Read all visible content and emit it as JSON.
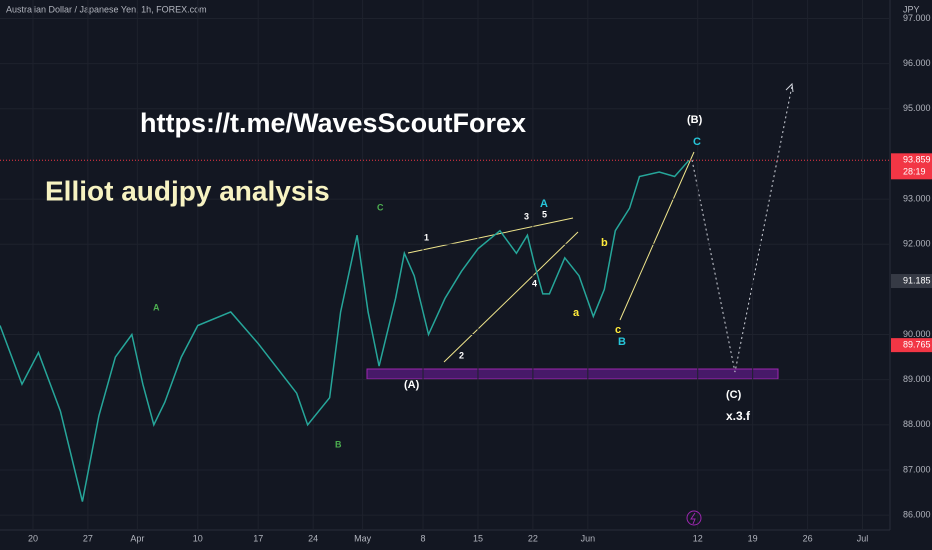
{
  "chart_data": {
    "type": "line",
    "title": "Australian Dollar / Japanese Yen, 1h, FOREX.com",
    "y_axis_label": "JPY",
    "x": [
      0,
      2,
      3.5,
      5.5,
      7.5,
      9,
      10.5,
      12,
      13,
      14,
      15,
      16.5,
      18,
      21,
      23.5,
      27,
      28,
      30,
      31,
      32.5,
      33.5,
      34.5,
      36,
      36.8,
      37.7,
      39,
      40.5,
      42,
      43.5,
      45.5,
      47,
      48,
      48.6,
      49.4,
      50,
      51.4,
      52.7,
      54,
      55,
      56,
      57.3,
      58.2,
      60,
      61.4,
      62.7
    ],
    "series": [
      {
        "name": "AUDJPY",
        "color": "#26a69a",
        "values": [
          90.2,
          88.9,
          89.6,
          88.3,
          86.3,
          88.2,
          89.5,
          90.0,
          88.9,
          88.0,
          88.5,
          89.5,
          90.2,
          90.5,
          89.8,
          88.7,
          88.0,
          88.6,
          90.5,
          92.2,
          90.5,
          89.3,
          90.8,
          91.8,
          91.3,
          90.0,
          90.8,
          91.4,
          91.9,
          92.3,
          91.8,
          92.2,
          91.6,
          90.9,
          90.9,
          91.7,
          91.3,
          90.4,
          91.0,
          92.3,
          92.8,
          93.5,
          93.6,
          93.5,
          93.859
        ]
      }
    ],
    "xlim": [
      0,
      81
    ],
    "ylim": [
      85.67,
      97.41
    ],
    "xticks": [
      {
        "value": 3,
        "label": "20"
      },
      {
        "value": 8,
        "label": "27"
      },
      {
        "value": 12.5,
        "label": "Apr"
      },
      {
        "value": 18,
        "label": "10"
      },
      {
        "value": 23.5,
        "label": "17"
      },
      {
        "value": 28.5,
        "label": "24"
      },
      {
        "value": 33,
        "label": "May"
      },
      {
        "value": 38.5,
        "label": "8"
      },
      {
        "value": 43.5,
        "label": "15"
      },
      {
        "value": 48.5,
        "label": "22"
      },
      {
        "value": 53.5,
        "label": "Jun"
      },
      {
        "value": 63.5,
        "label": "12"
      },
      {
        "value": 68.5,
        "label": "19"
      },
      {
        "value": 73.5,
        "label": "26"
      },
      {
        "value": 78.5,
        "label": "Jul"
      }
    ],
    "yticks": [
      {
        "value": 86,
        "label": "86.000"
      },
      {
        "value": 87,
        "label": "87.000"
      },
      {
        "value": 88,
        "label": "88.000"
      },
      {
        "value": 89,
        "label": "89.000"
      },
      {
        "value": 90,
        "label": "90.000"
      },
      {
        "value": 92,
        "label": "92.000"
      },
      {
        "value": 93,
        "label": "93.000"
      },
      {
        "value": 95,
        "label": "95.000"
      },
      {
        "value": 96,
        "label": "96.000"
      },
      {
        "value": 97,
        "label": "97.000"
      }
    ],
    "price_tags": [
      {
        "value": 93.859,
        "color": "#f23645"
      },
      {
        "value": 91.185,
        "color": "#363a45"
      },
      {
        "value": 89.765,
        "color": "#f23645"
      }
    ],
    "annotations": [
      "https://t.me/WavesScoutForex",
      "Elliot audjpy analysis",
      "C",
      "A",
      "B",
      "1",
      "2",
      "3",
      "4",
      "5",
      "A",
      "a",
      "b",
      "c",
      "B",
      "(A)",
      "(B)",
      "C",
      "(C)",
      "x.3.f",
      "28:19"
    ]
  }
}
